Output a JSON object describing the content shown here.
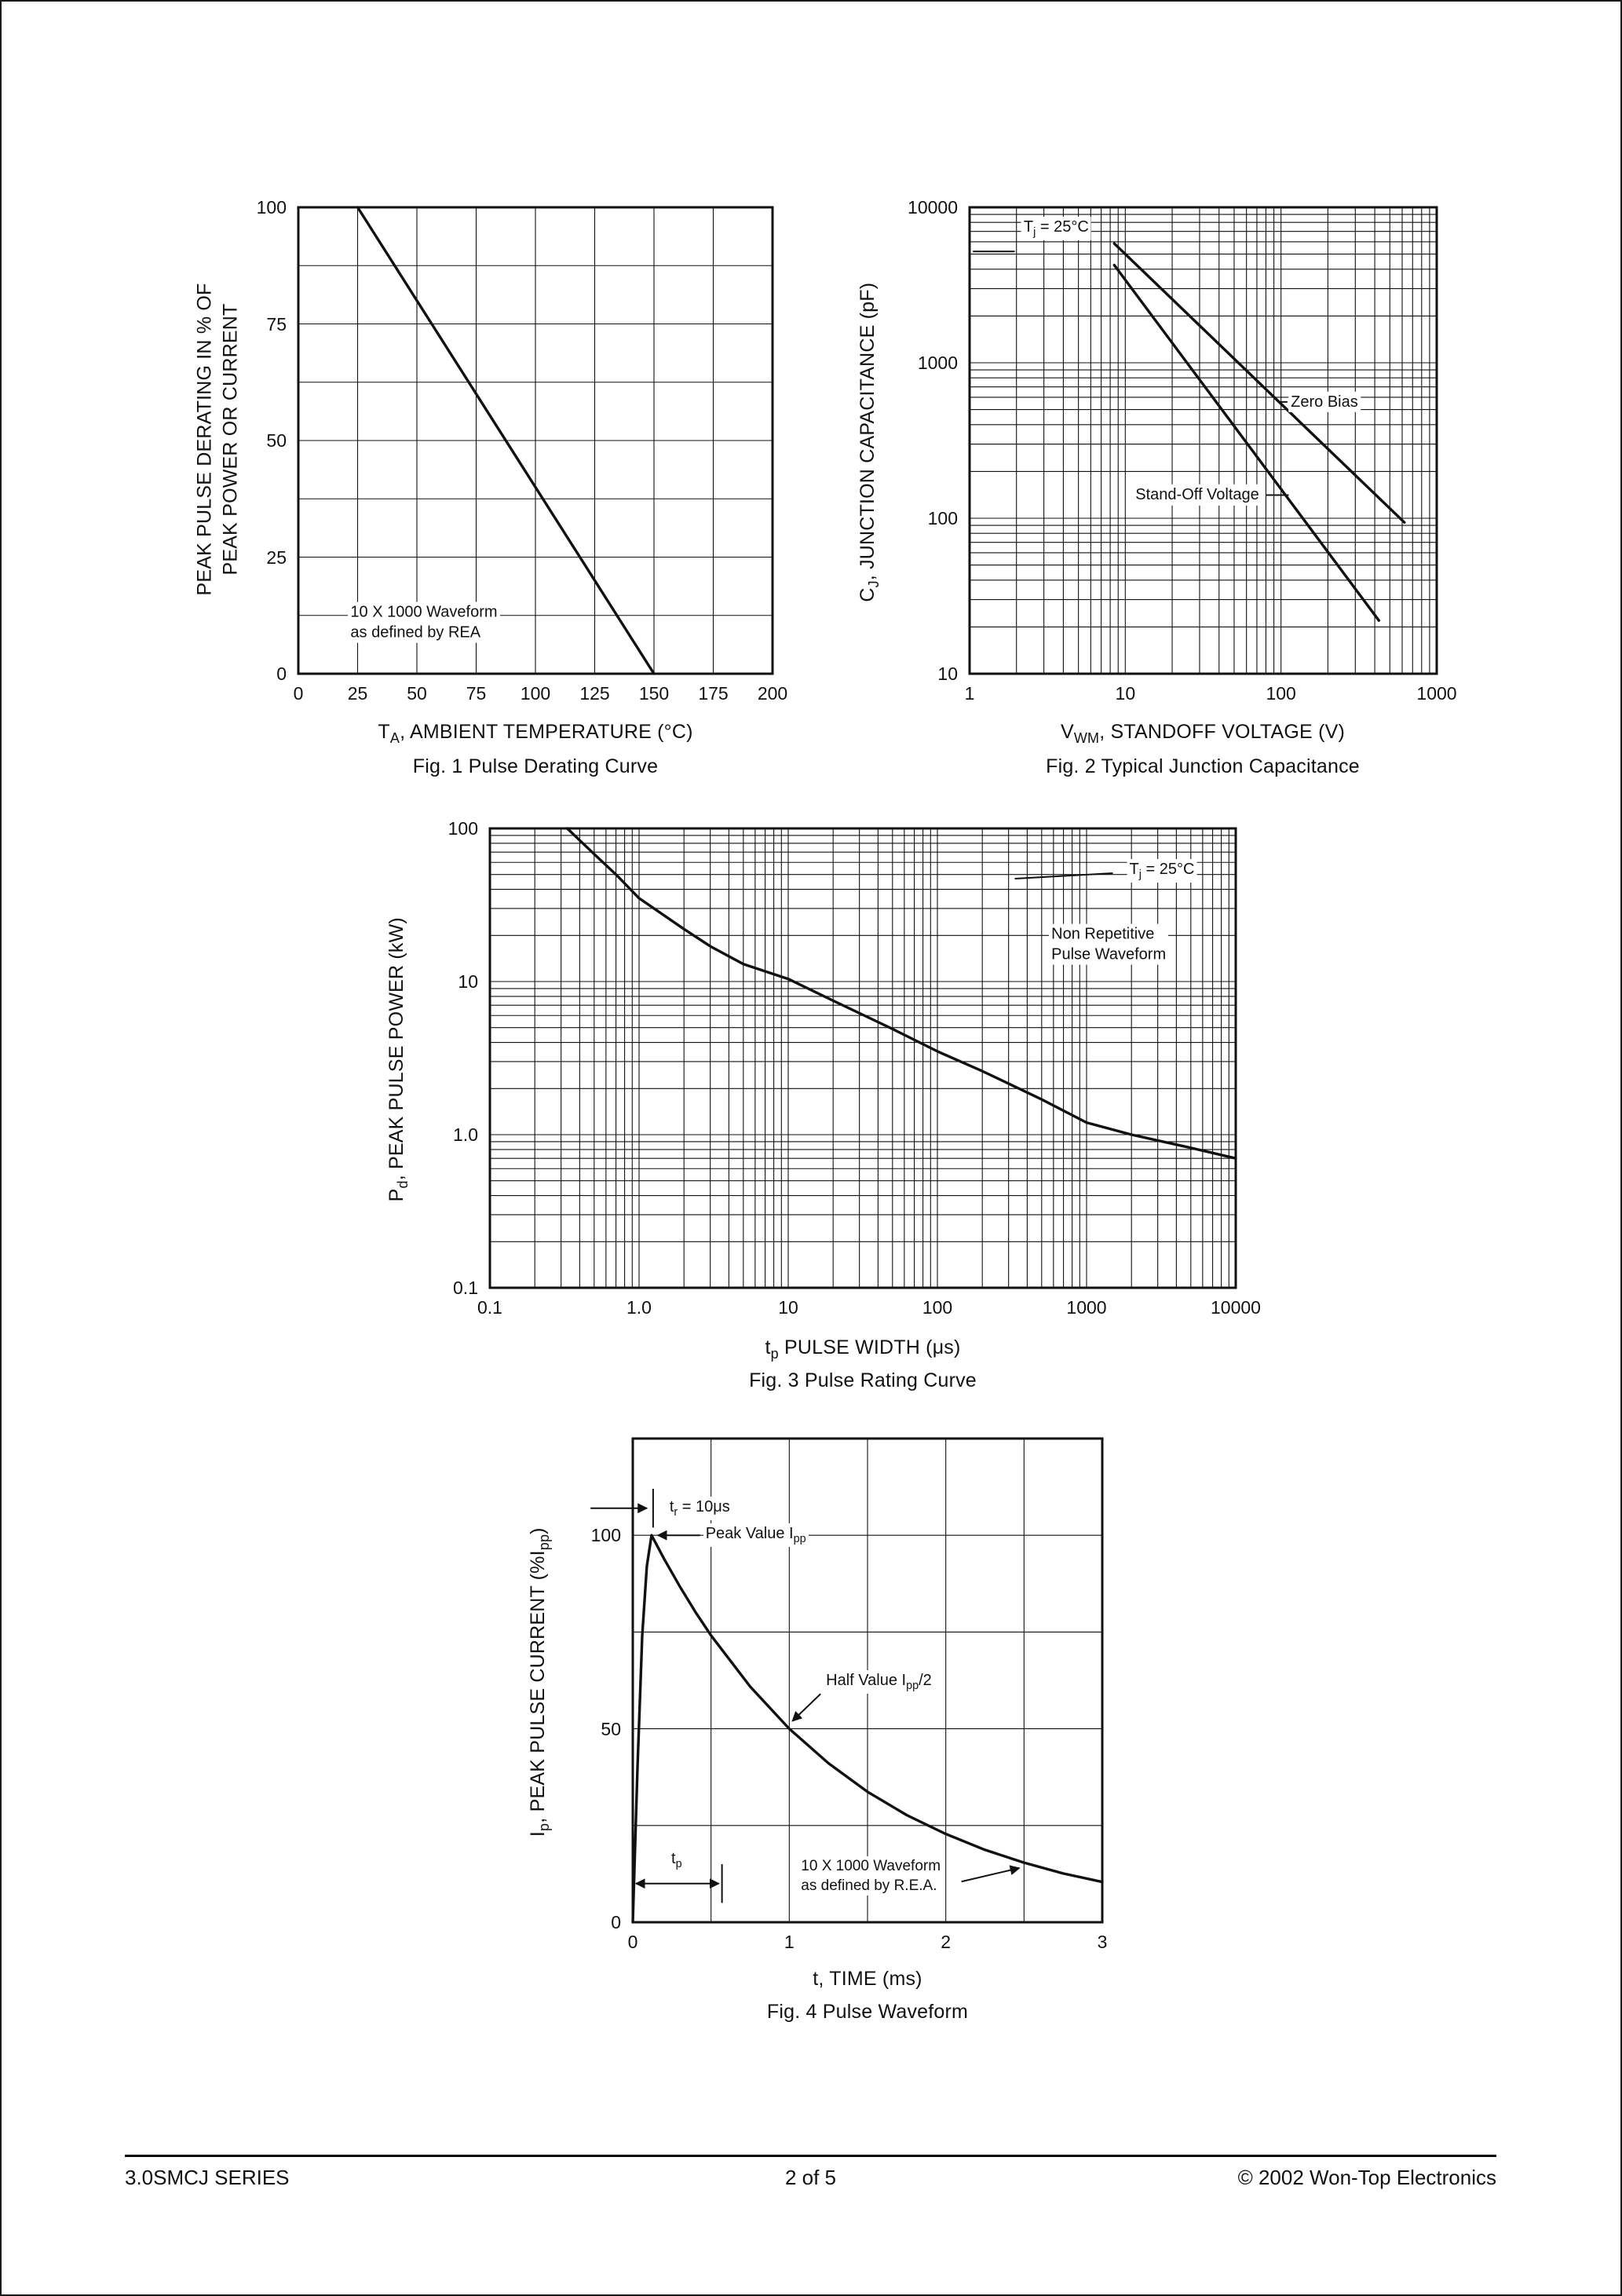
{
  "footer": {
    "left": "3.0SMCJ SERIES",
    "center": "2 of 5",
    "right": "© 2002 Won-Top Electronics"
  },
  "chart_data": [
    {
      "id": "fig1",
      "type": "line",
      "title": "Fig. 1  Pulse Derating Curve",
      "xlabel": "T_{A}, AMBIENT TEMPERATURE (°C)",
      "ylabel": "PEAK PULSE DERATING IN % OF\nPEAK POWER OR CURRENT",
      "x": {
        "type": "linear",
        "min": 0,
        "max": 200,
        "grid_step": 25,
        "ticks": [
          {
            "v": 0,
            "l": "0"
          },
          {
            "v": 25,
            "l": "25"
          },
          {
            "v": 50,
            "l": "50"
          },
          {
            "v": 75,
            "l": "75"
          },
          {
            "v": 100,
            "l": "100"
          },
          {
            "v": 125,
            "l": "125"
          },
          {
            "v": 150,
            "l": "150"
          },
          {
            "v": 175,
            "l": "175"
          },
          {
            "v": 200,
            "l": "200"
          }
        ]
      },
      "y": {
        "type": "linear",
        "min": 0,
        "max": 100,
        "grid_step": 12.5,
        "ticks": [
          {
            "v": 0,
            "l": "0"
          },
          {
            "v": 25,
            "l": "25"
          },
          {
            "v": 50,
            "l": "50"
          },
          {
            "v": 75,
            "l": "75"
          },
          {
            "v": 100,
            "l": "100"
          }
        ]
      },
      "series": [
        {
          "name": "derating-line",
          "points": [
            [
              25,
              100
            ],
            [
              150,
              0
            ]
          ]
        }
      ],
      "annotations": [
        {
          "name": "waveform-note",
          "x": 21,
          "y": 11,
          "align": "left",
          "size": 20,
          "text": "10 X 1000 Waveform\nas defined by REA"
        }
      ],
      "arrows": []
    },
    {
      "id": "fig2",
      "type": "line",
      "title": "Fig. 2  Typical Junction Capacitance",
      "xlabel": "V_{WM}, STANDOFF VOLTAGE (V)",
      "ylabel": "C_{J}, JUNCTION CAPACITANCE (pF)",
      "x": {
        "type": "log",
        "min": 1,
        "max": 1000,
        "ticks": [
          {
            "v": 1,
            "l": "1"
          },
          {
            "v": 10,
            "l": "10"
          },
          {
            "v": 100,
            "l": "100"
          },
          {
            "v": 1000,
            "l": "1000"
          }
        ]
      },
      "y": {
        "type": "log",
        "min": 10,
        "max": 10000,
        "ticks": [
          {
            "v": 10,
            "l": "10"
          },
          {
            "v": 100,
            "l": "100"
          },
          {
            "v": 1000,
            "l": "1000"
          },
          {
            "v": 10000,
            "l": "10000"
          }
        ]
      },
      "series": [
        {
          "name": "zero-bias-line",
          "points": [
            [
              8.5,
              5850
            ],
            [
              620,
              94
            ]
          ]
        },
        {
          "name": "stand-off-voltage-line",
          "points": [
            [
              8.5,
              4250
            ],
            [
              425,
              22
            ]
          ]
        }
      ],
      "annotations": [
        {
          "name": "tj-label",
          "x": 3.6,
          "y": 7300,
          "align": "center",
          "size": 20,
          "text": "T_{j} = 25°C"
        },
        {
          "name": "zero-bias-label",
          "x": 190,
          "y": 560,
          "align": "center",
          "size": 20,
          "text": "Zero Bias"
        },
        {
          "name": "stand-off-voltage-label",
          "x": 29,
          "y": 141,
          "align": "center",
          "size": 20,
          "text": "Stand-Off Voltage"
        }
      ],
      "arrows": [
        {
          "x1": 1.05,
          "y1": 5200,
          "x2": 1.95,
          "y2": 5200,
          "head": "none"
        },
        {
          "x1": 98,
          "y1": 560,
          "x2": 110,
          "y2": 560,
          "head": "none"
        },
        {
          "x1": 80,
          "y1": 141,
          "x2": 112,
          "y2": 141,
          "head": "none"
        }
      ]
    },
    {
      "id": "fig3",
      "type": "line",
      "title": "Fig. 3 Pulse Rating Curve",
      "xlabel": "t_{p} PULSE WIDTH (μs)",
      "ylabel": "P_{d}, PEAK PULSE POWER (kW)",
      "x": {
        "type": "log",
        "min": 0.1,
        "max": 10000,
        "ticks": [
          {
            "v": 0.1,
            "l": "0.1"
          },
          {
            "v": 1,
            "l": "1.0"
          },
          {
            "v": 10,
            "l": "10"
          },
          {
            "v": 100,
            "l": "100"
          },
          {
            "v": 1000,
            "l": "1000"
          },
          {
            "v": 10000,
            "l": "10000"
          }
        ]
      },
      "y": {
        "type": "log",
        "min": 0.1,
        "max": 100,
        "ticks": [
          {
            "v": 100,
            "l": "100"
          },
          {
            "v": 10,
            "l": "10"
          },
          {
            "v": 1,
            "l": "1.0"
          },
          {
            "v": 0.1,
            "l": "0.1"
          }
        ]
      },
      "series": [
        {
          "name": "pulse-rating-curve",
          "points": [
            [
              0.33,
              100
            ],
            [
              0.5,
              68
            ],
            [
              0.7,
              50
            ],
            [
              1,
              35
            ],
            [
              2,
              22
            ],
            [
              3,
              17
            ],
            [
              5,
              13
            ],
            [
              10,
              10.4
            ],
            [
              20,
              7.5
            ],
            [
              50,
              4.9
            ],
            [
              100,
              3.5
            ],
            [
              200,
              2.6
            ],
            [
              500,
              1.7
            ],
            [
              1000,
              1.2
            ],
            [
              2000,
              1.0
            ],
            [
              5000,
              0.82
            ],
            [
              10000,
              0.7
            ]
          ]
        }
      ],
      "annotations": [
        {
          "name": "tj-label",
          "x": 3200,
          "y": 53,
          "align": "center",
          "size": 20,
          "text": "T_{j} = 25°C"
        },
        {
          "name": "non-repetitive-label",
          "x": 560,
          "y": 17.5,
          "align": "left",
          "size": 20,
          "text": "Non Repetitive\nPulse Waveform"
        }
      ],
      "arrows": [
        {
          "x1": 330,
          "y1": 47,
          "x2": 1500,
          "y2": 51,
          "head": "none"
        }
      ]
    },
    {
      "id": "fig4",
      "type": "line",
      "title": "Fig. 4  Pulse Waveform",
      "xlabel": "t, TIME (ms)",
      "ylabel": "I_{p}, PEAK PULSE CURRENT (%I_{pp})",
      "x": {
        "type": "linear",
        "min": 0,
        "max": 3,
        "grid_step": 0.5,
        "ticks": [
          {
            "v": 0,
            "l": "0"
          },
          {
            "v": 1,
            "l": "1"
          },
          {
            "v": 2,
            "l": "2"
          },
          {
            "v": 3,
            "l": "3"
          }
        ]
      },
      "y": {
        "type": "linear",
        "min": 0,
        "max": 125,
        "grid_step": 25,
        "ticks": [
          {
            "v": 0,
            "l": "0"
          },
          {
            "v": 50,
            "l": "50"
          },
          {
            "v": 100,
            "l": "100"
          }
        ]
      },
      "series": [
        {
          "name": "pulse-waveform",
          "points": [
            [
              0,
              0
            ],
            [
              0.03,
              40
            ],
            [
              0.06,
              74
            ],
            [
              0.09,
              92
            ],
            [
              0.12,
              100
            ],
            [
              0.2,
              93.9
            ],
            [
              0.3,
              86.8
            ],
            [
              0.4,
              80.2
            ],
            [
              0.5,
              74.1
            ],
            [
              0.75,
              60.9
            ],
            [
              1,
              50
            ],
            [
              1.25,
              41.1
            ],
            [
              1.5,
              33.7
            ],
            [
              1.75,
              27.7
            ],
            [
              2,
              22.8
            ],
            [
              2.25,
              18.7
            ],
            [
              2.5,
              15.4
            ],
            [
              2.75,
              12.6
            ],
            [
              3,
              10.4
            ]
          ]
        }
      ],
      "annotations": [
        {
          "name": "tr-label",
          "x": 0.22,
          "y": 107,
          "align": "left",
          "size": 20,
          "text": "t_{r} = 10μs"
        },
        {
          "name": "peak-value-label",
          "x": 0.45,
          "y": 100,
          "align": "left",
          "size": 20,
          "text": "Peak Value I_{pp}"
        },
        {
          "name": "half-value-label",
          "x": 1.22,
          "y": 62,
          "align": "left",
          "size": 20,
          "text": "Half Value I_{pp}/2"
        },
        {
          "name": "tp-label",
          "x": 0.28,
          "y": 16,
          "align": "center",
          "size": 20,
          "text": "t_{p}"
        },
        {
          "name": "waveform-note",
          "x": 1.06,
          "y": 12,
          "align": "left",
          "size": 19,
          "text": "10 X 1000 Waveform\nas defined by R.E.A."
        }
      ],
      "arrows": [
        {
          "x1": -0.27,
          "y1": 107,
          "x2": 0.09,
          "y2": 107,
          "head": "end"
        },
        {
          "x1": 0.13,
          "y1": 102,
          "x2": 0.13,
          "y2": 112,
          "head": "none"
        },
        {
          "x1": 0.43,
          "y1": 100,
          "x2": 0.16,
          "y2": 100,
          "head": "end"
        },
        {
          "x1": 1.2,
          "y1": 59,
          "x2": 1.02,
          "y2": 52,
          "head": "end"
        },
        {
          "x1": 0.02,
          "y1": 10,
          "x2": 0.55,
          "y2": 10,
          "head": "both"
        },
        {
          "x1": 0.57,
          "y1": 5,
          "x2": 0.57,
          "y2": 15,
          "head": "none"
        },
        {
          "x1": 2.1,
          "y1": 10.5,
          "x2": 2.47,
          "y2": 14,
          "head": "end"
        }
      ]
    }
  ]
}
